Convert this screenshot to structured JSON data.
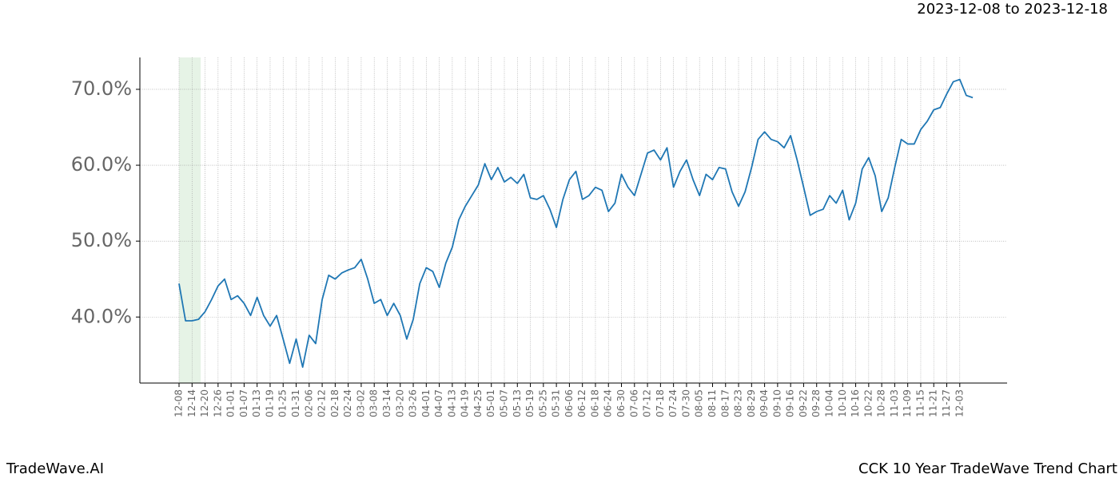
{
  "chart_data": {
    "type": "line",
    "title": "2023-12-08 to 2023-12-18",
    "footer_left": "TradeWave.AI",
    "footer_right": "CCK 10 Year TradeWave Trend Chart",
    "color": "#1f77b4",
    "grid": true,
    "categories": [
      "12-08",
      null,
      "12-14",
      null,
      "12-20",
      null,
      "12-26",
      null,
      "01-01",
      null,
      "01-07",
      null,
      "01-13",
      null,
      "01-19",
      null,
      "01-25",
      null,
      "01-31",
      null,
      "02-06",
      null,
      "02-12",
      null,
      "02-18",
      null,
      "02-24",
      null,
      "03-02",
      null,
      "03-08",
      null,
      "03-14",
      null,
      "03-20",
      null,
      "03-26",
      null,
      "04-01",
      null,
      "04-07",
      null,
      "04-13",
      null,
      "04-19",
      null,
      "04-25",
      null,
      "05-01",
      null,
      "05-07",
      null,
      "05-13",
      null,
      "05-19",
      null,
      "05-25",
      null,
      "05-31",
      null,
      "06-06",
      null,
      "06-12",
      null,
      "06-18",
      null,
      "06-24",
      null,
      "06-30",
      null,
      "07-06",
      null,
      "07-12",
      null,
      "07-18",
      null,
      "07-24",
      null,
      "07-30",
      null,
      "08-05",
      null,
      "08-11",
      null,
      "08-17",
      null,
      "08-23",
      null,
      "08-29",
      null,
      "09-04",
      null,
      "09-10",
      null,
      "09-16",
      null,
      "09-22",
      null,
      "09-28",
      null,
      "10-04",
      null,
      "10-10",
      null,
      "10-16",
      null,
      "10-22",
      null,
      "10-28",
      null,
      "11-03",
      null,
      "11-09",
      null,
      "11-15",
      null,
      "11-21",
      null,
      "11-27",
      null,
      "12-03",
      null,
      null
    ],
    "values": [
      44.4,
      39.5,
      39.5,
      39.7,
      40.7,
      42.3,
      44.1,
      45.0,
      42.3,
      42.8,
      41.8,
      40.2,
      42.6,
      40.2,
      38.8,
      40.2,
      37.1,
      33.9,
      37.1,
      33.4,
      37.6,
      36.5,
      42.3,
      45.5,
      45.0,
      45.8,
      46.2,
      46.5,
      47.6,
      45.0,
      41.8,
      42.3,
      40.2,
      41.8,
      40.2,
      37.1,
      39.7,
      44.4,
      46.5,
      46.0,
      43.9,
      47.1,
      49.2,
      52.8,
      54.6,
      56.0,
      57.4,
      60.2,
      58.1,
      59.7,
      57.8,
      58.4,
      57.6,
      58.8,
      55.7,
      55.5,
      56.0,
      54.2,
      51.8,
      55.5,
      58.1,
      59.2,
      55.5,
      56.0,
      57.1,
      56.7,
      53.9,
      55.0,
      58.8,
      57.1,
      56.0,
      58.8,
      61.6,
      62.0,
      60.7,
      62.3,
      57.1,
      59.2,
      60.7,
      58.1,
      56.0,
      58.8,
      58.1,
      59.7,
      59.5,
      56.5,
      54.6,
      56.5,
      59.7,
      63.4,
      64.4,
      63.4,
      63.1,
      62.3,
      63.9,
      60.7,
      57.1,
      53.4,
      53.9,
      54.2,
      56.0,
      55.0,
      56.7,
      52.8,
      55.0,
      59.5,
      61.0,
      58.6,
      53.9,
      55.7,
      59.7,
      63.4,
      62.8,
      62.8,
      64.7,
      65.8,
      67.3,
      67.6,
      69.4,
      71.0,
      71.3,
      69.2,
      68.9
    ],
    "ylim": [
      31.3,
      74.2
    ],
    "yticks": [
      {
        "value": 40,
        "label": "40.0%"
      },
      {
        "value": 50,
        "label": "50.0%"
      },
      {
        "value": 60,
        "label": "60.0%"
      },
      {
        "value": 70,
        "label": "70.0%"
      }
    ]
  }
}
